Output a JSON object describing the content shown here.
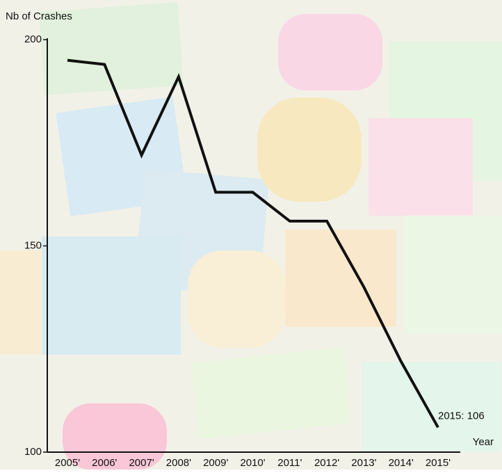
{
  "chart_data": {
    "type": "line",
    "y_label": "Nb of Crashes",
    "x_label": "Year",
    "categories": [
      "2005'",
      "2006'",
      "2007'",
      "2008'",
      "2009'",
      "2010'",
      "2011'",
      "2012'",
      "2013'",
      "2014'",
      "2015'"
    ],
    "series": [
      {
        "color": "#111111",
        "values": [
          195,
          194,
          172,
          191,
          163,
          163,
          156,
          156,
          140,
          122,
          106
        ],
        "value_labels": [
          null,
          null,
          null,
          null,
          null,
          null,
          null,
          null,
          null,
          null,
          "2015: 106"
        ]
      }
    ],
    "ylim": [
      100,
      200
    ],
    "yticks": [
      100,
      150,
      200
    ]
  }
}
